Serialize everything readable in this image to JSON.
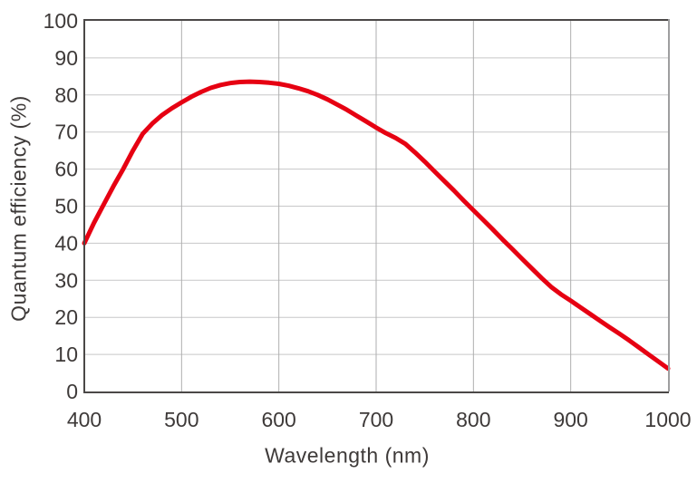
{
  "chart_data": {
    "type": "line",
    "title": "",
    "xlabel": "Wavelength (nm)",
    "ylabel": "Quantum efficiency (%)",
    "xlim": [
      400,
      1000
    ],
    "ylim": [
      0,
      100
    ],
    "xtick_labels": [
      "400",
      "500",
      "600",
      "700",
      "800",
      "900",
      "1000"
    ],
    "ytick_labels": [
      "0",
      "10",
      "20",
      "30",
      "40",
      "50",
      "60",
      "70",
      "80",
      "90",
      "100"
    ],
    "grid": "on",
    "legend": "none",
    "series": [
      {
        "name": "quantum-efficiency",
        "x": [
          400,
          410,
          420,
          430,
          440,
          450,
          460,
          470,
          480,
          490,
          500,
          510,
          520,
          530,
          540,
          550,
          560,
          570,
          580,
          590,
          600,
          610,
          620,
          630,
          640,
          650,
          660,
          670,
          680,
          690,
          700,
          710,
          720,
          730,
          740,
          750,
          760,
          770,
          780,
          790,
          800,
          810,
          820,
          830,
          840,
          850,
          860,
          870,
          880,
          890,
          900,
          910,
          920,
          930,
          940,
          950,
          960,
          970,
          980,
          990,
          1000
        ],
        "y": [
          40.0,
          45.5,
          50.5,
          55.4,
          60.0,
          65.0,
          69.5,
          72.3,
          74.6,
          76.4,
          78.0,
          79.5,
          80.8,
          81.9,
          82.7,
          83.2,
          83.5,
          83.6,
          83.5,
          83.3,
          83.0,
          82.5,
          81.8,
          81.0,
          80.0,
          78.8,
          77.4,
          76.0,
          74.4,
          72.8,
          71.2,
          69.7,
          68.4,
          66.8,
          64.5,
          62.0,
          59.4,
          56.8,
          54.2,
          51.5,
          48.9,
          46.3,
          43.7,
          41.0,
          38.4,
          35.8,
          33.2,
          30.6,
          28.2,
          26.2,
          24.5,
          22.7,
          20.9,
          19.1,
          17.3,
          15.6,
          13.8,
          11.9,
          10.0,
          8.1,
          6.2
        ]
      }
    ],
    "colors": {
      "line": "#e60012",
      "text": "#3e3a39",
      "grid_horizontal": "#c7c7c8",
      "grid_vertical": "#aeaeaf",
      "axis_dark": "#4b4847",
      "axis_light": "#9e9e9f",
      "background": "#ffffff"
    },
    "line_width": 5
  }
}
